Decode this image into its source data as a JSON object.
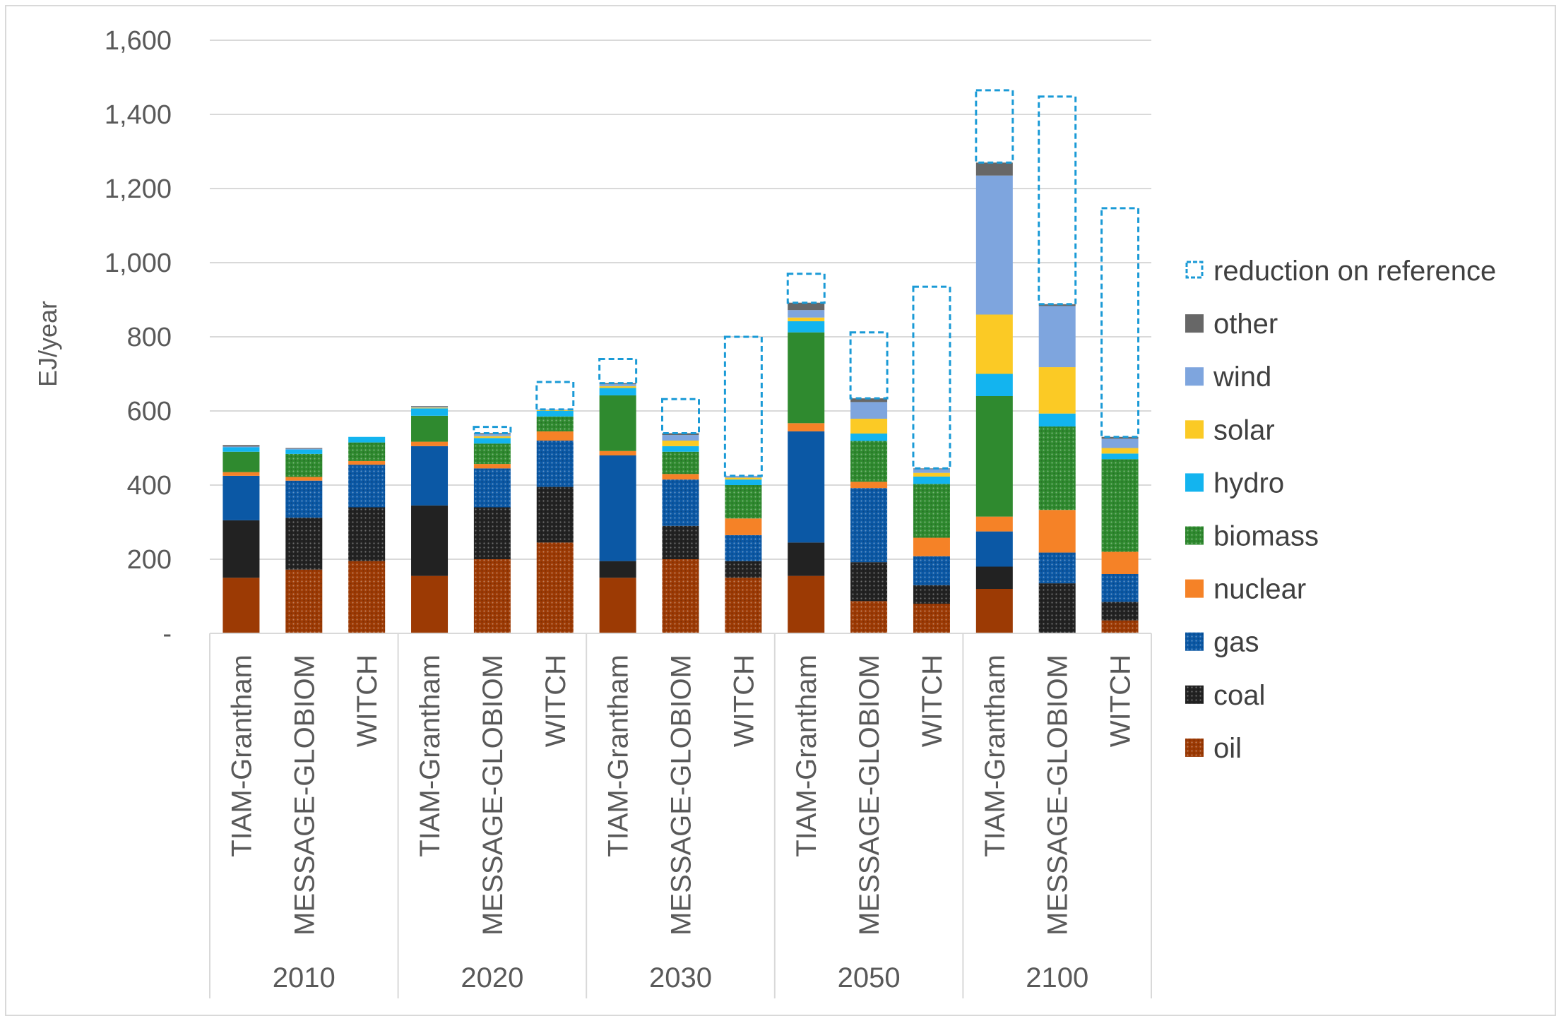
{
  "chart_data": {
    "type": "bar",
    "stacked": true,
    "ylabel": "EJ/year",
    "ylim": [
      0,
      1600
    ],
    "yticks": [
      0,
      200,
      400,
      600,
      800,
      1000,
      1200,
      1400,
      1600
    ],
    "ytick_labels": [
      "-",
      "200",
      "400",
      "600",
      "800",
      "1,000",
      "1,200",
      "1,400",
      "1,600"
    ],
    "grid": true,
    "legend_position": "right",
    "groups": [
      "2010",
      "2020",
      "2030",
      "2050",
      "2100"
    ],
    "models": [
      "TIAM-Grantham",
      "MESSAGE-GLOBIOM",
      "WITCH"
    ],
    "series": [
      {
        "name": "oil",
        "color": "#9c3a04",
        "pattern": "solid-tiam"
      },
      {
        "name": "coal",
        "color": "#222222",
        "pattern": "solid-tiam"
      },
      {
        "name": "gas",
        "color": "#0b58a5",
        "pattern": "solid-tiam"
      },
      {
        "name": "nuclear",
        "color": "#f58227",
        "pattern": "solid"
      },
      {
        "name": "biomass",
        "color": "#2f8a2f",
        "pattern": "solid-tiam"
      },
      {
        "name": "hydro",
        "color": "#13b4ef",
        "pattern": "solid"
      },
      {
        "name": "solar",
        "color": "#fbca25",
        "pattern": "solid"
      },
      {
        "name": "wind",
        "color": "#7ea5de",
        "pattern": "solid"
      },
      {
        "name": "other",
        "color": "#676767",
        "pattern": "solid"
      }
    ],
    "reduction_series": {
      "name": "reduction on reference",
      "color": "#1a9ad6",
      "style": "dashed-outline"
    },
    "legend_order": [
      "reduction on reference",
      "other",
      "wind",
      "solar",
      "hydro",
      "biomass",
      "nuclear",
      "gas",
      "coal",
      "oil"
    ],
    "bars": [
      {
        "group": "2010",
        "model": "TIAM-Grantham",
        "values": [
          150,
          155,
          120,
          10,
          55,
          12,
          0,
          2,
          4
        ],
        "reference_total": 508
      },
      {
        "group": "2010",
        "model": "MESSAGE-GLOBIOM",
        "values": [
          172,
          140,
          100,
          10,
          62,
          12,
          0,
          2,
          2
        ],
        "reference_total": 500
      },
      {
        "group": "2010",
        "model": "WITCH",
        "values": [
          195,
          145,
          115,
          10,
          50,
          15,
          0,
          0,
          0
        ],
        "reference_total": 530
      },
      {
        "group": "2020",
        "model": "TIAM-Grantham",
        "values": [
          155,
          190,
          160,
          12,
          70,
          20,
          2,
          2,
          2
        ],
        "reference_total": 613
      },
      {
        "group": "2020",
        "model": "MESSAGE-GLOBIOM",
        "values": [
          200,
          140,
          105,
          12,
          55,
          15,
          5,
          5,
          3
        ],
        "reference_total": 557
      },
      {
        "group": "2020",
        "model": "WITCH",
        "values": [
          245,
          150,
          125,
          25,
          40,
          15,
          2,
          2,
          0
        ],
        "reference_total": 678
      },
      {
        "group": "2030",
        "model": "TIAM-Grantham",
        "values": [
          150,
          45,
          285,
          12,
          150,
          20,
          5,
          5,
          3
        ],
        "reference_total": 740
      },
      {
        "group": "2030",
        "model": "MESSAGE-GLOBIOM",
        "values": [
          200,
          90,
          125,
          15,
          60,
          15,
          15,
          15,
          5
        ],
        "reference_total": 632
      },
      {
        "group": "2030",
        "model": "WITCH",
        "values": [
          150,
          45,
          70,
          45,
          90,
          15,
          5,
          5,
          0
        ],
        "reference_total": 800
      },
      {
        "group": "2050",
        "model": "TIAM-Grantham",
        "values": [
          155,
          90,
          300,
          22,
          245,
          30,
          10,
          20,
          20
        ],
        "reference_total": 970
      },
      {
        "group": "2050",
        "model": "MESSAGE-GLOBIOM",
        "values": [
          87,
          105,
          200,
          17,
          110,
          20,
          40,
          45,
          10
        ],
        "reference_total": 812
      },
      {
        "group": "2050",
        "model": "WITCH",
        "values": [
          80,
          50,
          78,
          50,
          145,
          20,
          10,
          10,
          2
        ],
        "reference_total": 935
      },
      {
        "group": "2100",
        "model": "TIAM-Grantham",
        "values": [
          120,
          60,
          95,
          40,
          325,
          60,
          160,
          375,
          35
        ],
        "reference_total": 1465
      },
      {
        "group": "2100",
        "model": "MESSAGE-GLOBIOM",
        "values": [
          0,
          135,
          83,
          115,
          225,
          35,
          125,
          165,
          5
        ],
        "reference_total": 1448
      },
      {
        "group": "2100",
        "model": "WITCH",
        "values": [
          35,
          50,
          75,
          60,
          250,
          15,
          15,
          25,
          5
        ],
        "reference_total": 1147
      }
    ]
  }
}
